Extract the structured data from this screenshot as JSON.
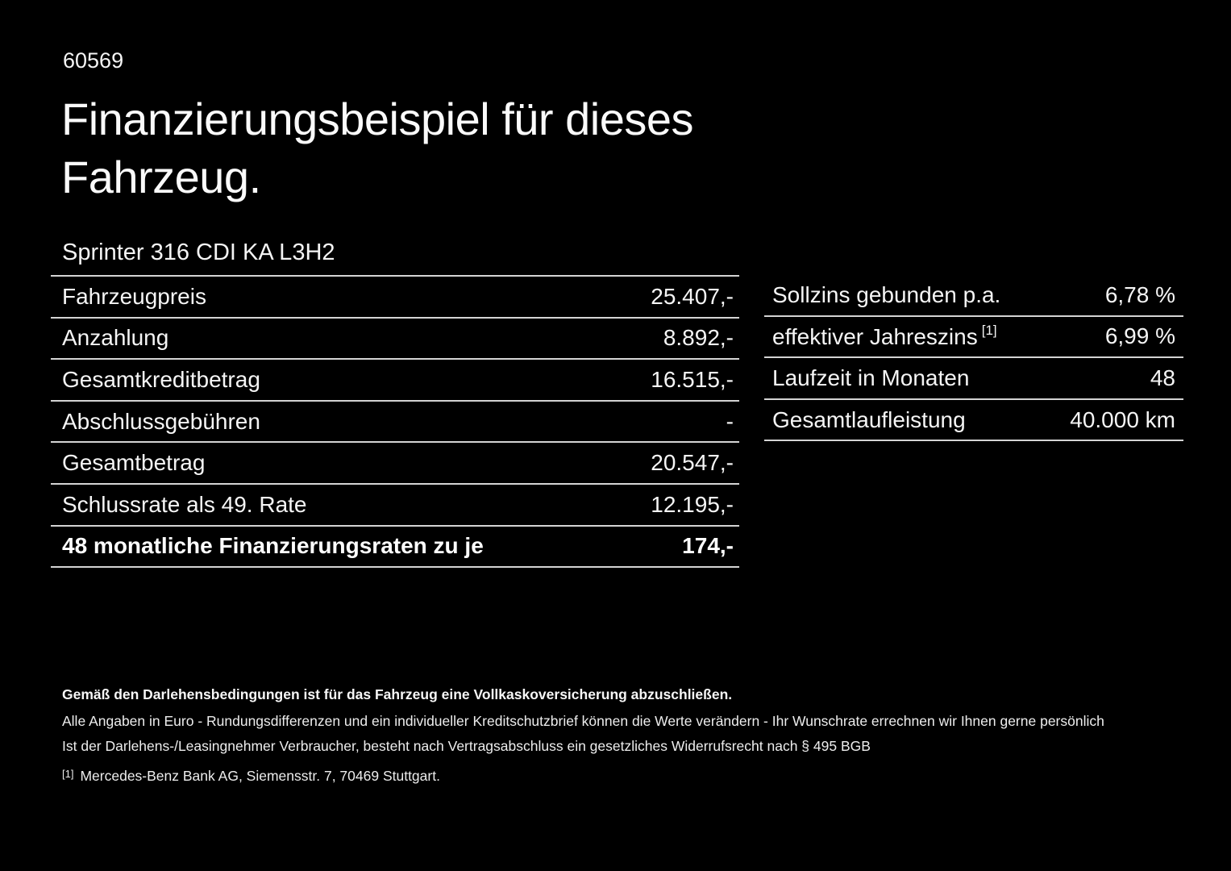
{
  "page": {
    "doc_number": "60569",
    "title": "Finanzierungsbeispiel für dieses Fahrzeug.",
    "vehicle_model": "Sprinter 316 CDI KA L3H2"
  },
  "colors": {
    "background": "#000000",
    "text": "#f5f5f5",
    "rule": "#d4d4d4"
  },
  "left_table": {
    "rows": [
      {
        "label": "Fahrzeugpreis",
        "value": "25.407,-"
      },
      {
        "label": "Anzahlung",
        "value": "8.892,-"
      },
      {
        "label": "Gesamtkreditbetrag",
        "value": "16.515,-"
      },
      {
        "label": "Abschlussgebühren",
        "value": "-"
      },
      {
        "label": "Gesamtbetrag",
        "value": "20.547,-"
      },
      {
        "label": "Schlussrate als 49. Rate",
        "value": "12.195,-"
      },
      {
        "label": "48 monatliche Finanzierungsraten zu je",
        "value": "174,-"
      }
    ]
  },
  "right_table": {
    "rows": [
      {
        "label": "Sollzins gebunden p.a.",
        "sup": "",
        "value": "6,78 %"
      },
      {
        "label": "effektiver Jahreszins",
        "sup": "[1]",
        "value": "6,99 %"
      },
      {
        "label": "Laufzeit in Monaten",
        "sup": "",
        "value": "48"
      },
      {
        "label": "Gesamtlaufleistung",
        "sup": "",
        "value": "40.000 km"
      }
    ]
  },
  "footer": {
    "insurance_note": "Gemäß den Darlehensbedingungen ist für das Fahrzeug eine Vollkaskoversicherung abzuschließen.",
    "disclaimer_1": "Alle Angaben in Euro - Rundungsdifferenzen und ein individueller Kreditschutzbrief können die Werte verändern - Ihr Wunschrate errechnen wir Ihnen gerne persönlich",
    "disclaimer_2": "Ist der Darlehens-/Leasingnehmer Verbraucher, besteht nach Vertragsabschluss ein gesetzliches Widerrufsrecht nach § 495 BGB",
    "footnote_marker": "[1]",
    "footnote_text": "Mercedes-Benz Bank AG, Siemensstr. 7, 70469 Stuttgart."
  }
}
